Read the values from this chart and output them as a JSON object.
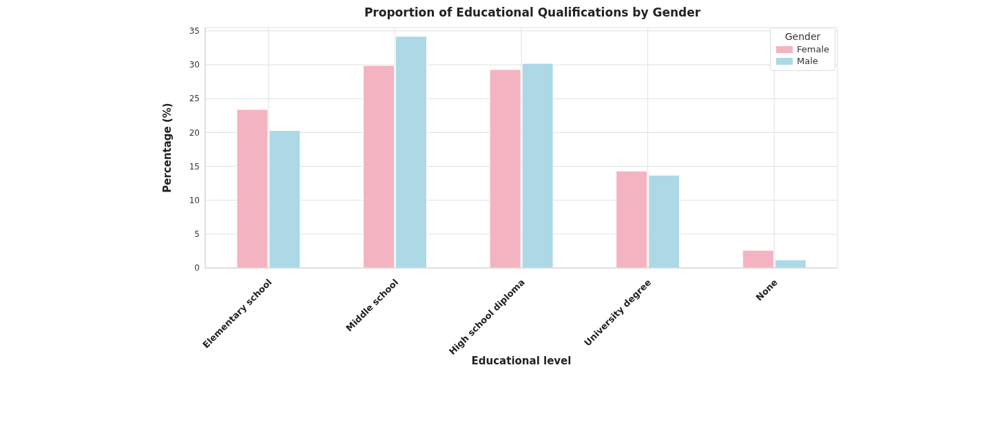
{
  "chart_data": {
    "type": "bar",
    "title": "Proportion of Educational Qualifications by Gender",
    "xlabel": "Educational level",
    "ylabel": "Percentage (%)",
    "legend_title": "Gender",
    "categories": [
      "Elementary school",
      "Middle school",
      "High school diploma",
      "University degree",
      "None"
    ],
    "series": [
      {
        "name": "Female",
        "color": "#f4b3c0",
        "values": [
          23.4,
          29.9,
          29.3,
          14.3,
          2.6
        ]
      },
      {
        "name": "Male",
        "color": "#add8e6",
        "values": [
          20.3,
          34.2,
          30.2,
          13.7,
          1.2
        ]
      }
    ],
    "ylim": [
      0,
      35.5
    ],
    "yticks": [
      0,
      5,
      10,
      15,
      20,
      25,
      30,
      35
    ],
    "grid": true,
    "legend": "top right"
  }
}
